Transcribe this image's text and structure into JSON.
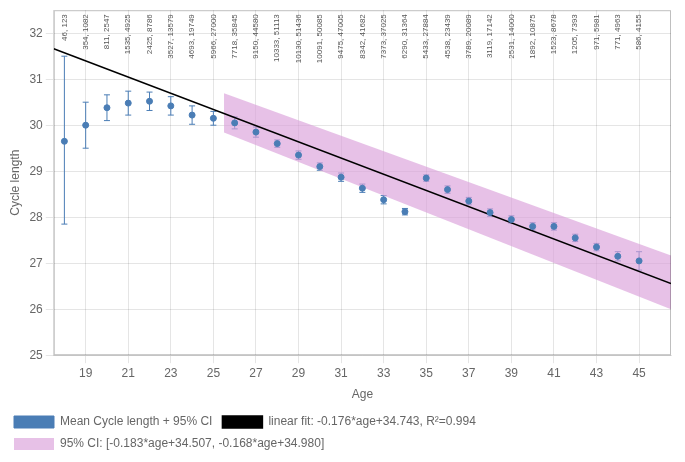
{
  "chart_data": {
    "type": "scatter",
    "xlabel": "Age",
    "ylabel": "Cycle length",
    "xlim": [
      17.5,
      46.5
    ],
    "ylim": [
      25.0,
      32.5
    ],
    "xticks": [
      19,
      21,
      23,
      25,
      27,
      29,
      31,
      33,
      35,
      37,
      39,
      41,
      43,
      45
    ],
    "yticks": [
      25,
      26,
      27,
      28,
      29,
      30,
      31,
      32
    ],
    "grid": true,
    "legend": "lower left",
    "series": [
      {
        "name": "linear fit: -0.176*age+34.743, R²=0.994",
        "type": "line",
        "color": "#000000",
        "x": [
          17.5,
          46.5
        ],
        "values": [
          31.663,
          26.559
        ]
      },
      {
        "name": "95% CI: [-0.183*age+34.507, -0.168*age+34.980]",
        "type": "area",
        "color": "#da9fda",
        "x": [
          25.5,
          46.5
        ],
        "lower": [
          29.8405,
          25.9975
        ],
        "upper": [
          30.696,
          27.168
        ]
      },
      {
        "name": "Mean Cycle length + 95% CI",
        "type": "scatter",
        "color": "#4a7db5",
        "marker": "circle",
        "x": [
          18,
          19,
          20,
          21,
          22,
          23,
          24,
          25,
          26,
          27,
          28,
          29,
          30,
          31,
          32,
          33,
          34,
          35,
          36,
          37,
          38,
          39,
          40,
          41,
          42,
          43,
          44,
          45
        ],
        "values": [
          29.65,
          30.0,
          30.38,
          30.48,
          30.52,
          30.42,
          30.22,
          30.15,
          30.05,
          29.85,
          29.6,
          29.35,
          29.1,
          28.87,
          28.63,
          28.38,
          28.12,
          28.85,
          28.6,
          28.35,
          28.1,
          27.95,
          27.8,
          27.8,
          27.55,
          27.35,
          27.15,
          27.05
        ],
        "ci_lower": [
          27.85,
          29.5,
          30.1,
          30.22,
          30.32,
          30.22,
          30.02,
          30.0,
          29.92,
          29.74,
          29.52,
          29.26,
          29.02,
          28.78,
          28.54,
          28.29,
          28.05,
          28.78,
          28.52,
          28.27,
          28.02,
          27.87,
          27.72,
          27.72,
          27.47,
          27.27,
          27.05,
          26.85
        ],
        "ci_upper": [
          31.5,
          30.5,
          30.66,
          30.74,
          30.72,
          30.62,
          30.42,
          30.3,
          30.18,
          29.96,
          29.68,
          29.44,
          29.18,
          28.96,
          28.72,
          28.47,
          28.19,
          28.92,
          28.68,
          28.43,
          28.18,
          28.03,
          27.88,
          27.88,
          27.63,
          27.43,
          27.25,
          27.25
        ]
      }
    ],
    "annotations": [
      {
        "x": 18,
        "text": "46, 123"
      },
      {
        "x": 19,
        "text": "354, 1082"
      },
      {
        "x": 20,
        "text": "811, 2547"
      },
      {
        "x": 21,
        "text": "1535, 4925"
      },
      {
        "x": 22,
        "text": "2425, 8786"
      },
      {
        "x": 23,
        "text": "3527, 13579"
      },
      {
        "x": 24,
        "text": "4693, 19749"
      },
      {
        "x": 25,
        "text": "5966, 27000"
      },
      {
        "x": 26,
        "text": "7718, 35845"
      },
      {
        "x": 27,
        "text": "9150, 44580"
      },
      {
        "x": 28,
        "text": "10333, 51113"
      },
      {
        "x": 29,
        "text": "10130, 51436"
      },
      {
        "x": 30,
        "text": "10091, 50085"
      },
      {
        "x": 31,
        "text": "9475, 47005"
      },
      {
        "x": 32,
        "text": "8342, 41682"
      },
      {
        "x": 33,
        "text": "7373, 37025"
      },
      {
        "x": 34,
        "text": "6290, 31364"
      },
      {
        "x": 35,
        "text": "5433, 27884"
      },
      {
        "x": 36,
        "text": "4538, 23439"
      },
      {
        "x": 37,
        "text": "3789, 20089"
      },
      {
        "x": 38,
        "text": "3119, 17142"
      },
      {
        "x": 39,
        "text": "2531, 14000"
      },
      {
        "x": 40,
        "text": "1892, 10875"
      },
      {
        "x": 41,
        "text": "1523, 8678"
      },
      {
        "x": 42,
        "text": "1205, 7393"
      },
      {
        "x": 43,
        "text": "971, 5981"
      },
      {
        "x": 44,
        "text": "771, 4963"
      },
      {
        "x": 45,
        "text": "586, 4155"
      }
    ]
  }
}
